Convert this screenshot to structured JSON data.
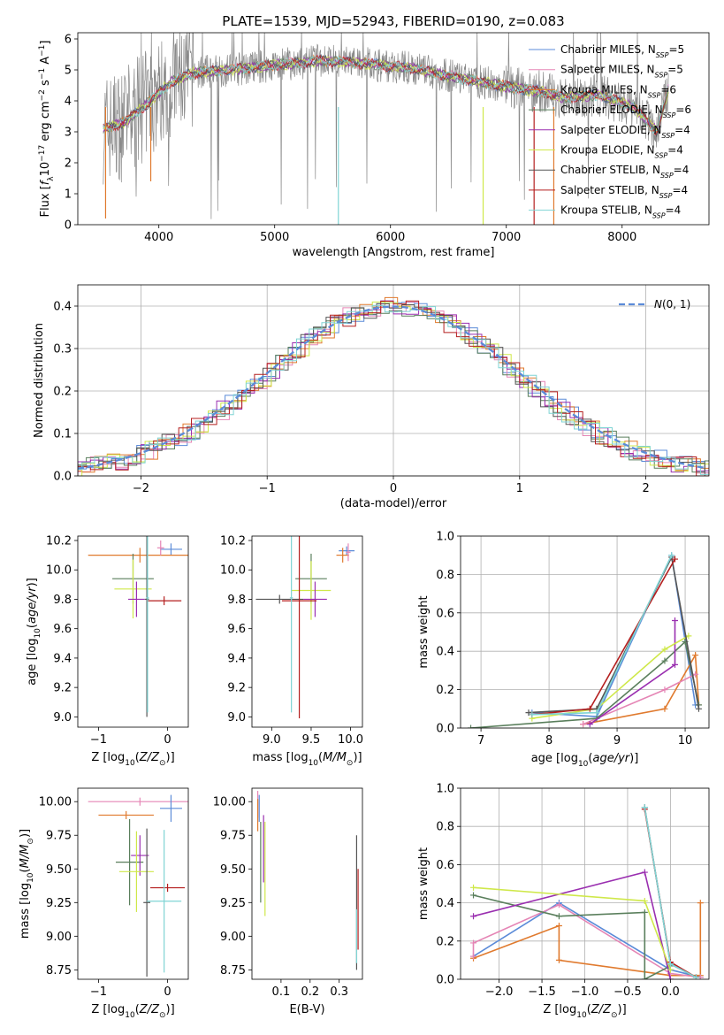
{
  "figure": {
    "title": "PLATE=1539, MJD=52943, FIBERID=0190, z=0.083"
  },
  "palette": {
    "blue": "#5b8bd8",
    "orange": "#e07a2e",
    "green": "#5a7f5c",
    "purple": "#9a2fb0",
    "lime": "#cfe84a",
    "gray": "#555555",
    "red": "#b41f1f",
    "cyan": "#7fd4d4",
    "pink": "#e585b5",
    "data_gray": "#888888",
    "grid": "#b0b0b0"
  },
  "chart_data": [
    {
      "id": "spectrum",
      "type": "line",
      "title": "PLATE=1539, MJD=52943, FIBERID=0190, z=0.083",
      "xlabel": "wavelength [Angstrom, rest frame]",
      "ylabel": "Flux [fλ10⁻¹⁷ erg cm⁻² s⁻¹ A⁻¹]",
      "xlim": [
        3300,
        8750
      ],
      "ylim": [
        0,
        6.2
      ],
      "xticks": [
        4000,
        5000,
        6000,
        7000,
        8000
      ],
      "yticks": [
        0,
        1,
        2,
        3,
        4,
        5,
        6
      ],
      "grid": false,
      "legend_position": "right",
      "data_envelope": {
        "x": [
          3520,
          3700,
          3900,
          4100,
          4300,
          4600,
          5000,
          5400,
          5800,
          6200,
          6500,
          6800,
          7100,
          7300,
          7500,
          7800,
          8100,
          8300,
          8400
        ],
        "y": [
          3.1,
          3.3,
          3.9,
          4.6,
          4.9,
          5.0,
          5.15,
          5.3,
          5.2,
          5.05,
          4.8,
          4.6,
          4.4,
          4.3,
          4.1,
          4.2,
          3.8,
          3.0,
          4.4
        ]
      },
      "series": [
        {
          "name": "Chabrier MILES, N_SSP=5",
          "name_main": "Chabrier MILES, N",
          "name_sub": "SSP",
          "name_tail": "=5",
          "color": "#5b8bd8"
        },
        {
          "name": "Salpeter MILES, N_SSP=5",
          "name_main": "Salpeter MILES, N",
          "name_sub": "SSP",
          "name_tail": "=5",
          "color": "#e585b5"
        },
        {
          "name": "Kroupa MILES, N_SSP=6",
          "name_main": "Kroupa MILES, N",
          "name_sub": "SSP",
          "name_tail": "=6",
          "color": "#e07a2e"
        },
        {
          "name": "Chabrier ELODIE, N_SSP=6",
          "name_main": "Chabrier ELODIE, N",
          "name_sub": "SSP",
          "name_tail": "=6",
          "color": "#5a7f5c"
        },
        {
          "name": "Salpeter ELODIE, N_SSP=4",
          "name_main": "Salpeter ELODIE, N",
          "name_sub": "SSP",
          "name_tail": "=4",
          "color": "#9a2fb0"
        },
        {
          "name": "Kroupa ELODIE, N_SSP=4",
          "name_main": "Kroupa ELODIE, N",
          "name_sub": "SSP",
          "name_tail": "=4",
          "color": "#cfe84a"
        },
        {
          "name": "Chabrier STELIB, N_SSP=4",
          "name_main": "Chabrier STELIB, N",
          "name_sub": "SSP",
          "name_tail": "=4",
          "color": "#555555"
        },
        {
          "name": "Salpeter STELIB, N_SSP=4",
          "name_main": "Salpeter STELIB, N",
          "name_sub": "SSP",
          "name_tail": "=4",
          "color": "#b41f1f"
        },
        {
          "name": "Kroupa STELIB, N_SSP=4",
          "name_main": "Kroupa STELIB, N",
          "name_sub": "SSP",
          "name_tail": "=4",
          "color": "#7fd4d4"
        }
      ]
    },
    {
      "id": "residuals",
      "type": "histogram",
      "xlabel": "(data-model)/error",
      "ylabel": "Normed distribution",
      "xlim": [
        -2.5,
        2.5
      ],
      "ylim": [
        0,
        0.45
      ],
      "xticks": [
        -2,
        -1,
        0,
        1,
        2
      ],
      "yticks": [
        0.0,
        0.1,
        0.2,
        0.3,
        0.4
      ],
      "grid": true,
      "legend_position": "top-right",
      "legend_label": "N(0, 1)",
      "reference_curve": "normal, mean 0, sigma 1"
    },
    {
      "id": "age_vs_Z",
      "type": "scatter",
      "xlabel": "Z [log10(Z/Z⊙)]",
      "ylabel": "age  [log10(age/yr)]",
      "xlim": [
        -1.3,
        0.3
      ],
      "ylim": [
        8.93,
        10.23
      ],
      "xticks": [
        -1,
        0
      ],
      "yticks": [
        9.0,
        9.2,
        9.4,
        9.6,
        9.8,
        10.0,
        10.2
      ],
      "grid": false,
      "points": [
        {
          "color": "#5b8bd8",
          "x": 0.05,
          "y": 10.14,
          "xerr": 0.16,
          "yerr": 0.04
        },
        {
          "color": "#e07a2e",
          "x": -0.4,
          "y": 10.1,
          "xerr": 0.75,
          "yerr": 0.05
        },
        {
          "color": "#e585b5",
          "x": -0.1,
          "y": 10.15,
          "xerr": 0.05,
          "yerr": 0.05
        },
        {
          "color": "#5a7f5c",
          "x": -0.5,
          "y": 9.94,
          "xerr": 0.3,
          "yerr": 0.17
        },
        {
          "color": "#cfe84a",
          "x": -0.5,
          "y": 9.87,
          "xerr": 0.27,
          "yerr": 0.2
        },
        {
          "color": "#9a2fb0",
          "x": -0.45,
          "y": 9.8,
          "xerr": 0.12,
          "yerr": 0.12
        },
        {
          "color": "#555555",
          "x": -0.3,
          "y": 9.8,
          "xerr": 0.03,
          "yerr": 0.8
        },
        {
          "color": "#b41f1f",
          "x": -0.05,
          "y": 9.79,
          "xerr": 0.25,
          "yerr": 0.03
        },
        {
          "color": "#7fd4d4",
          "x": -0.29,
          "y": 9.81,
          "xerr": 0.02,
          "yerr": 0.78
        }
      ]
    },
    {
      "id": "age_vs_mass",
      "type": "scatter",
      "xlabel": "mass [log10(M/M⊙)]",
      "ylabel": "",
      "xlim": [
        8.75,
        10.15
      ],
      "ylim": [
        8.93,
        10.23
      ],
      "xticks": [
        9.0,
        9.5,
        10.0
      ],
      "yticks": [
        9.0,
        9.2,
        9.4,
        9.6,
        9.8,
        10.0,
        10.2
      ],
      "grid": false,
      "points": [
        {
          "color": "#5b8bd8",
          "x": 9.95,
          "y": 10.13,
          "xerr": 0.1,
          "yerr": 0.03
        },
        {
          "color": "#e07a2e",
          "x": 9.9,
          "y": 10.1,
          "xerr": 0.08,
          "yerr": 0.05
        },
        {
          "color": "#e585b5",
          "x": 9.97,
          "y": 10.12,
          "xerr": 0.03,
          "yerr": 0.06
        },
        {
          "color": "#5a7f5c",
          "x": 9.5,
          "y": 9.94,
          "xerr": 0.2,
          "yerr": 0.17
        },
        {
          "color": "#cfe84a",
          "x": 9.5,
          "y": 9.86,
          "xerr": 0.25,
          "yerr": 0.2
        },
        {
          "color": "#9a2fb0",
          "x": 9.55,
          "y": 9.8,
          "xerr": 0.15,
          "yerr": 0.12
        },
        {
          "color": "#555555",
          "x": 9.1,
          "y": 9.8,
          "xerr": 0.3,
          "yerr": 0.03
        },
        {
          "color": "#b41f1f",
          "x": 9.35,
          "y": 9.79,
          "xerr": 0.22,
          "yerr": 0.8
        },
        {
          "color": "#7fd4d4",
          "x": 9.25,
          "y": 9.81,
          "xerr": 0.02,
          "yerr": 0.78
        }
      ]
    },
    {
      "id": "weight_vs_age",
      "type": "line",
      "xlabel": "age  [log10(age/yr)]",
      "ylabel": "mass weight",
      "xlim": [
        6.7,
        10.35
      ],
      "ylim": [
        0,
        1.0
      ],
      "xticks": [
        7,
        8,
        9,
        10
      ],
      "yticks": [
        0.0,
        0.2,
        0.4,
        0.6,
        0.8,
        1.0
      ],
      "grid": true,
      "series": [
        {
          "color": "#5b8bd8",
          "x": [
            7.75,
            8.7,
            9.8,
            10.15,
            10.2
          ],
          "y": [
            0.08,
            0.06,
            0.9,
            0.12,
            0.12
          ]
        },
        {
          "color": "#e07a2e",
          "x": [
            8.5,
            9.7,
            10.15,
            10.2
          ],
          "y": [
            0.02,
            0.1,
            0.38,
            0.12
          ]
        },
        {
          "color": "#e585b5",
          "x": [
            8.5,
            9.7,
            10.15
          ],
          "y": [
            0.02,
            0.2,
            0.28
          ]
        },
        {
          "color": "#5a7f5c",
          "x": [
            6.85,
            8.7,
            9.7,
            10.0,
            10.2
          ],
          "y": [
            0.0,
            0.05,
            0.35,
            0.45,
            0.12
          ]
        },
        {
          "color": "#9a2fb0",
          "x": [
            8.6,
            9.85,
            9.85
          ],
          "y": [
            0.02,
            0.33,
            0.56
          ]
        },
        {
          "color": "#cfe84a",
          "x": [
            7.75,
            8.7,
            9.7,
            10.05
          ],
          "y": [
            0.05,
            0.1,
            0.41,
            0.48
          ]
        },
        {
          "color": "#555555",
          "x": [
            7.7,
            8.7,
            9.8,
            10.2
          ],
          "y": [
            0.08,
            0.1,
            0.89,
            0.1
          ]
        },
        {
          "color": "#b41f1f",
          "x": [
            7.75,
            8.6,
            9.85
          ],
          "y": [
            0.07,
            0.1,
            0.88
          ]
        },
        {
          "color": "#7fd4d4",
          "x": [
            7.75,
            8.7,
            9.8
          ],
          "y": [
            0.07,
            0.08,
            0.9
          ]
        }
      ]
    },
    {
      "id": "mass_vs_Z",
      "type": "scatter",
      "xlabel": "Z [log10(Z/Z⊙)]",
      "ylabel": "mass [log10(M/M⊙)]",
      "xlim": [
        -1.3,
        0.3
      ],
      "ylim": [
        8.68,
        10.1
      ],
      "xticks": [
        -1,
        0
      ],
      "yticks": [
        8.75,
        9.0,
        9.25,
        9.5,
        9.75,
        10.0
      ],
      "grid": false,
      "points": [
        {
          "color": "#e585b5",
          "x": -0.4,
          "y": 10.0,
          "xerr": 0.75,
          "yerr": 0.03
        },
        {
          "color": "#5b8bd8",
          "x": 0.05,
          "y": 9.95,
          "xerr": 0.16,
          "yerr": 0.1
        },
        {
          "color": "#e07a2e",
          "x": -0.6,
          "y": 9.9,
          "xerr": 0.4,
          "yerr": 0.03
        },
        {
          "color": "#5a7f5c",
          "x": -0.55,
          "y": 9.55,
          "xerr": 0.2,
          "yerr": 0.32
        },
        {
          "color": "#9a2fb0",
          "x": -0.4,
          "y": 9.6,
          "xerr": 0.13,
          "yerr": 0.15
        },
        {
          "color": "#cfe84a",
          "x": -0.45,
          "y": 9.48,
          "xerr": 0.25,
          "yerr": 0.3
        },
        {
          "color": "#b41f1f",
          "x": 0.0,
          "y": 9.36,
          "xerr": 0.25,
          "yerr": 0.03
        },
        {
          "color": "#555555",
          "x": -0.3,
          "y": 9.25,
          "xerr": 0.05,
          "yerr": 0.55
        },
        {
          "color": "#7fd4d4",
          "x": -0.05,
          "y": 9.26,
          "xerr": 0.25,
          "yerr": 0.53
        }
      ]
    },
    {
      "id": "mass_vs_EBV",
      "type": "scatter",
      "xlabel": "E(B-V)",
      "ylabel": "",
      "xlim": [
        0.0,
        0.38
      ],
      "ylim": [
        8.68,
        10.1
      ],
      "xticks": [
        0.1,
        0.2,
        0.3
      ],
      "yticks": [
        8.75,
        9.0,
        9.25,
        9.5,
        9.75,
        10.0
      ],
      "grid": false,
      "points": [
        {
          "color": "#e585b5",
          "x": 0.02,
          "y": 9.98,
          "xerr": 0.0,
          "yerr": 0.1
        },
        {
          "color": "#5b8bd8",
          "x": 0.025,
          "y": 9.95,
          "xerr": 0.0,
          "yerr": 0.1
        },
        {
          "color": "#e07a2e",
          "x": 0.02,
          "y": 9.9,
          "xerr": 0.0,
          "yerr": 0.12
        },
        {
          "color": "#5a7f5c",
          "x": 0.03,
          "y": 9.55,
          "xerr": 0.0,
          "yerr": 0.3
        },
        {
          "color": "#9a2fb0",
          "x": 0.04,
          "y": 9.65,
          "xerr": 0.0,
          "yerr": 0.25
        },
        {
          "color": "#cfe84a",
          "x": 0.045,
          "y": 9.5,
          "xerr": 0.0,
          "yerr": 0.35
        },
        {
          "color": "#555555",
          "x": 0.36,
          "y": 9.25,
          "xerr": 0.0,
          "yerr": 0.5
        },
        {
          "color": "#b41f1f",
          "x": 0.365,
          "y": 9.2,
          "xerr": 0.0,
          "yerr": 0.3
        },
        {
          "color": "#7fd4d4",
          "x": 0.36,
          "y": 9.0,
          "xerr": 0.0,
          "yerr": 0.2
        }
      ]
    },
    {
      "id": "weight_vs_Z",
      "type": "line",
      "xlabel": "Z [log10(Z/Z⊙)]",
      "ylabel": "mass weight",
      "xlim": [
        -2.45,
        0.45
      ],
      "ylim": [
        0,
        1.0
      ],
      "xticks": [
        -2.0,
        -1.5,
        -1.0,
        -0.5,
        0.0
      ],
      "yticks": [
        0.0,
        0.2,
        0.4,
        0.6,
        0.8,
        1.0
      ],
      "grid": true,
      "series": [
        {
          "color": "#5b8bd8",
          "x": [
            -2.3,
            -1.3,
            0.0,
            0.35
          ],
          "y": [
            0.12,
            0.4,
            0.05,
            0.01
          ]
        },
        {
          "color": "#e07a2e",
          "x": [
            -2.3,
            -1.3,
            -1.3,
            0.0,
            0.35,
            0.35
          ],
          "y": [
            0.11,
            0.28,
            0.1,
            0.02,
            0.02,
            0.4
          ]
        },
        {
          "color": "#e585b5",
          "x": [
            -2.3,
            -2.3,
            -1.3,
            0.0,
            0.35
          ],
          "y": [
            0.12,
            0.19,
            0.39,
            0.03,
            0.01
          ]
        },
        {
          "color": "#5a7f5c",
          "x": [
            -2.3,
            -1.3,
            -0.3,
            -0.3,
            0.0
          ],
          "y": [
            0.44,
            0.33,
            0.35,
            0.0,
            0.07
          ]
        },
        {
          "color": "#9a2fb0",
          "x": [
            -2.3,
            -0.3,
            0.0
          ],
          "y": [
            0.33,
            0.56,
            0.0
          ]
        },
        {
          "color": "#cfe84a",
          "x": [
            -2.3,
            -0.3,
            0.0
          ],
          "y": [
            0.48,
            0.41,
            0.05
          ]
        },
        {
          "color": "#555555",
          "x": [
            -0.3,
            0.0,
            0.3
          ],
          "y": [
            0.9,
            0.08,
            0.01
          ]
        },
        {
          "color": "#b41f1f",
          "x": [
            -0.3,
            0.0,
            0.3
          ],
          "y": [
            0.89,
            0.09,
            0.01
          ]
        },
        {
          "color": "#7fd4d4",
          "x": [
            -0.3,
            0.0,
            0.3
          ],
          "y": [
            0.9,
            0.08,
            0.01
          ]
        }
      ]
    }
  ]
}
